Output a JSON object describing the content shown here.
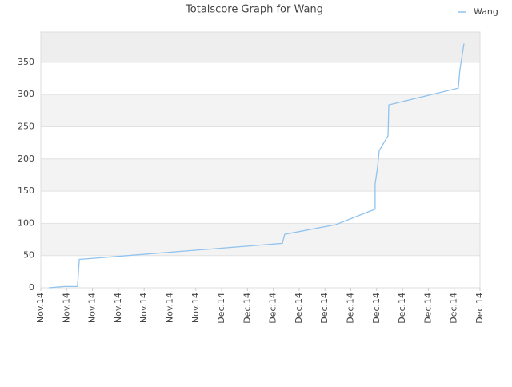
{
  "chart_data": {
    "type": "line",
    "title": "Totalscore Graph for Wang",
    "x": [
      0.31,
      0.9,
      1.42,
      1.49,
      9.35,
      9.44,
      11.42,
      12.94,
      12.94,
      13.03,
      13.1,
      13.44,
      13.47,
      16.16,
      16.22,
      16.38
    ],
    "series": [
      {
        "name": "Wang",
        "color": "#90c3ee",
        "values": [
          0,
          2,
          2,
          44,
          69,
          83,
          98,
          122,
          161,
          186,
          213,
          236,
          284,
          310,
          338,
          379
        ]
      }
    ],
    "xlim": [
      0,
      17
    ],
    "xticks": [
      {
        "value": 0,
        "label": "Nov.14"
      },
      {
        "value": 1,
        "label": "Nov.14"
      },
      {
        "value": 2,
        "label": "Nov.14"
      },
      {
        "value": 3,
        "label": "Nov.14"
      },
      {
        "value": 4,
        "label": "Nov.14"
      },
      {
        "value": 5,
        "label": "Nov.14"
      },
      {
        "value": 6,
        "label": "Nov.14"
      },
      {
        "value": 7,
        "label": "Dec.14"
      },
      {
        "value": 8,
        "label": "Dec.14"
      },
      {
        "value": 9,
        "label": "Dec.14"
      },
      {
        "value": 10,
        "label": "Dec.14"
      },
      {
        "value": 11,
        "label": "Dec.14"
      },
      {
        "value": 12,
        "label": "Dec.14"
      },
      {
        "value": 13,
        "label": "Dec.14"
      },
      {
        "value": 14,
        "label": "Dec.14"
      },
      {
        "value": 15,
        "label": "Dec.14"
      },
      {
        "value": 16,
        "label": "Dec.14"
      },
      {
        "value": 17,
        "label": "Dec.14"
      }
    ],
    "ylim": [
      0,
      397
    ],
    "yticks": [
      0,
      50,
      100,
      150,
      200,
      250,
      300,
      350
    ],
    "grid": true,
    "legend": "top-right"
  }
}
